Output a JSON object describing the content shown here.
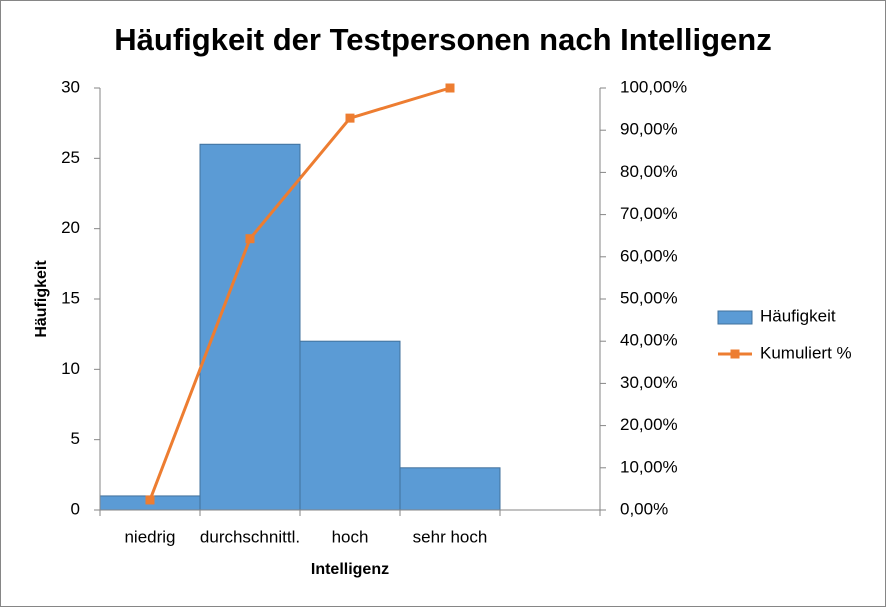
{
  "chart_data": {
    "type": "bar",
    "title": "Häufigkeit der Testpersonen nach Intelligenz",
    "x_label": "Intelligenz",
    "y_label": "Häufigkeit",
    "categories": [
      "niedrig",
      "durchschnittl.",
      "hoch",
      "sehr hoch",
      null
    ],
    "series": [
      {
        "name": "Häufigkeit",
        "type": "bar",
        "color": "#5b9bd5",
        "values": [
          1,
          26,
          12,
          3,
          null
        ]
      },
      {
        "name": "Kumuliert %",
        "type": "line",
        "color": "#ed7d31",
        "axis": "y2",
        "values": [
          2.38,
          64.29,
          92.86,
          100,
          null
        ]
      }
    ],
    "ylim": [
      0,
      30
    ],
    "yticks": [
      0,
      5,
      10,
      15,
      20,
      25,
      30
    ],
    "y2lim": [
      0,
      100
    ],
    "y2ticks": [
      {
        "value": 0,
        "label": "0,00%"
      },
      {
        "value": 10,
        "label": "10,00%"
      },
      {
        "value": 20,
        "label": "20,00%"
      },
      {
        "value": 30,
        "label": "30,00%"
      },
      {
        "value": 40,
        "label": "40,00%"
      },
      {
        "value": 50,
        "label": "50,00%"
      },
      {
        "value": 60,
        "label": "60,00%"
      },
      {
        "value": 70,
        "label": "70,00%"
      },
      {
        "value": 80,
        "label": "80,00%"
      },
      {
        "value": 90,
        "label": "90,00%"
      },
      {
        "value": 100,
        "label": "100,00%"
      }
    ],
    "grid": false,
    "legend": "right"
  }
}
